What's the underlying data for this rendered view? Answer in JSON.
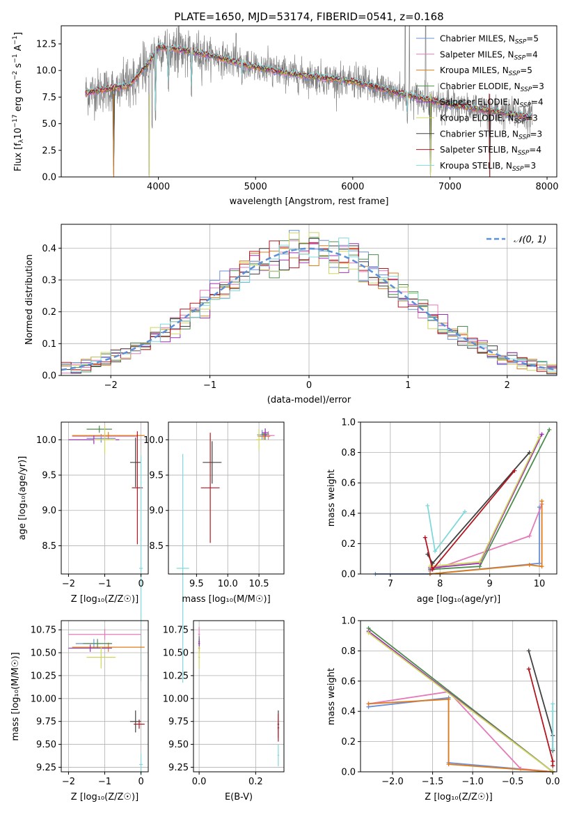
{
  "colors": {
    "series": [
      "#6a8fd6",
      "#e57ab8",
      "#e07b1a",
      "#4c8c4c",
      "#9b2fb4",
      "#cdd65a",
      "#404040",
      "#b3161f",
      "#7fd8dc"
    ],
    "raw": "#808080",
    "normal": "#5b8fd6",
    "grid": "#b0b0b0"
  },
  "chart_data": [
    {
      "id": "spectrum",
      "type": "line",
      "title": "PLATE=1650, MJD=53174, FIBERID=0541, z=0.168",
      "xlabel": "wavelength [Angstrom, rest frame]",
      "ylabel_parts": [
        "Flux [f",
        "λ",
        "10",
        "−17",
        " erg cm",
        "−2",
        " s",
        "−1",
        " A",
        "−1",
        "]"
      ],
      "xlim": [
        3000,
        8100
      ],
      "ylim": [
        0,
        14.2
      ],
      "xticks": [
        4000,
        5000,
        6000,
        7000,
        8000
      ],
      "yticks": [
        0.0,
        2.5,
        5.0,
        7.5,
        10.0,
        12.5
      ],
      "legend": [
        {
          "model": "Chabrier MILES",
          "n": 5
        },
        {
          "model": "Salpeter MILES",
          "n": 4
        },
        {
          "model": "Kroupa MILES",
          "n": 5
        },
        {
          "model": "Chabrier ELODIE",
          "n": 3
        },
        {
          "model": "Salpeter ELODIE",
          "n": 4
        },
        {
          "model": "Kroupa ELODIE",
          "n": 3
        },
        {
          "model": "Chabrier STELIB",
          "n": 3
        },
        {
          "model": "Salpeter STELIB",
          "n": 4
        },
        {
          "model": "Kroupa STELIB",
          "n": 3
        }
      ],
      "legend_suffix": "SSP",
      "legend_position": "top-right",
      "continuum": [
        [
          3250,
          7.9
        ],
        [
          3500,
          8.3
        ],
        [
          3700,
          8.6
        ],
        [
          3900,
          10.7
        ],
        [
          4000,
          12.2
        ],
        [
          4200,
          12.0
        ],
        [
          4500,
          11.5
        ],
        [
          5000,
          10.3
        ],
        [
          5500,
          9.5
        ],
        [
          6000,
          9.0
        ],
        [
          6500,
          7.8
        ],
        [
          7000,
          6.8
        ],
        [
          7500,
          6.1
        ],
        [
          7850,
          5.6
        ]
      ],
      "absorption": [
        [
          3540,
          0.0
        ],
        [
          3905,
          0.0
        ],
        [
          3935,
          4.5
        ],
        [
          3970,
          5.2
        ],
        [
          4102,
          8.0
        ],
        [
          4340,
          7.5
        ],
        [
          4860,
          8.5
        ],
        [
          5175,
          8.4
        ],
        [
          5890,
          7.7
        ],
        [
          6563,
          5.0
        ],
        [
          6800,
          0.0
        ],
        [
          7410,
          0.0
        ]
      ],
      "emission": [
        [
          4800,
          13.5
        ],
        [
          6540,
          14.2
        ],
        [
          6583,
          14.2
        ],
        [
          6750,
          14.2
        ]
      ]
    },
    {
      "id": "residuals",
      "type": "histogram",
      "xlabel": "(data-model)/error",
      "ylabel": "Normed distribution",
      "xlim": [
        -2.5,
        2.5
      ],
      "ylim": [
        0,
        0.475
      ],
      "xticks": [
        -2,
        -1,
        0,
        1,
        2
      ],
      "yticks": [
        0.0,
        0.1,
        0.2,
        0.3,
        0.4
      ],
      "legend": "𝒩(0, 1)",
      "legend_position": "top-right",
      "bins": 50,
      "edges": [
        -2.5,
        2.5
      ]
    },
    {
      "id": "age-vs-Z",
      "type": "scatter",
      "xlabel": "Z [log₁₀(Z/Z☉)]",
      "ylabel": "age  [log₁₀(age/yr)]",
      "xlim": [
        -2.2,
        0.2
      ],
      "ylim": [
        8.1,
        10.25
      ],
      "xticks": [
        -2,
        -1,
        0
      ],
      "yticks": [
        8.5,
        9.0,
        9.5,
        10.0
      ],
      "points": [
        {
          "x": -1.1,
          "y": 10.02,
          "xerr": 0.4,
          "yerr": 0.06
        },
        {
          "x": -1.0,
          "y": 10.05,
          "xerr": 0.9,
          "yerr": 0.05
        },
        {
          "x": -0.9,
          "y": 10.06,
          "xerr": 1.0,
          "yerr": 0.05
        },
        {
          "x": -1.15,
          "y": 10.15,
          "xerr": 0.35,
          "yerr": 0.05
        },
        {
          "x": -1.3,
          "y": 10.0,
          "xerr": 0.7,
          "yerr": 0.06
        },
        {
          "x": -1.0,
          "y": 10.0,
          "xerr": 0.3,
          "yerr": 0.2
        },
        {
          "x": -0.15,
          "y": 9.68,
          "xerr": 0.15,
          "yerr": 0.35
        },
        {
          "x": -0.1,
          "y": 9.32,
          "xerr": 0.15,
          "yerr": 0.8
        },
        {
          "x": 0.0,
          "y": 8.18,
          "xerr": 0.05,
          "yerr": 1.6
        }
      ]
    },
    {
      "id": "age-vs-mass",
      "type": "scatter",
      "xlabel": "mass [log₁₀(M/M☉)]",
      "ylabel": "",
      "xlim": [
        9.05,
        10.9
      ],
      "ylim": [
        8.1,
        10.25
      ],
      "xticks": [
        9.5,
        10.0,
        10.5
      ],
      "yticks": [
        8.5,
        9.0,
        9.5,
        10.0
      ],
      "points": [
        {
          "x": 10.55,
          "y": 10.07,
          "xerr": 0.08,
          "yerr": 0.07
        },
        {
          "x": 10.65,
          "y": 10.06,
          "xerr": 0.1,
          "yerr": 0.06
        },
        {
          "x": 10.58,
          "y": 10.05,
          "xerr": 0.1,
          "yerr": 0.05
        },
        {
          "x": 10.6,
          "y": 10.08,
          "xerr": 0.06,
          "yerr": 0.08
        },
        {
          "x": 10.6,
          "y": 10.1,
          "xerr": 0.05,
          "yerr": 0.06
        },
        {
          "x": 10.5,
          "y": 10.0,
          "xerr": 0.05,
          "yerr": 0.15
        },
        {
          "x": 9.75,
          "y": 9.68,
          "xerr": 0.15,
          "yerr": 0.3
        },
        {
          "x": 9.72,
          "y": 9.32,
          "xerr": 0.15,
          "yerr": 0.78
        },
        {
          "x": 9.28,
          "y": 8.18,
          "xerr": 0.1,
          "yerr": 1.62
        }
      ]
    },
    {
      "id": "massweight-vs-age",
      "type": "line",
      "xlabel": "age  [log₁₀(age/yr)]",
      "ylabel": "mass weight",
      "xlim": [
        6.4,
        10.35
      ],
      "ylim": [
        0,
        1.0
      ],
      "xticks": [
        7,
        8,
        9,
        10
      ],
      "yticks": [
        0.0,
        0.2,
        0.4,
        0.6,
        0.8,
        1.0
      ],
      "series": [
        {
          "x": [
            6.7,
            7.8,
            10.0,
            10.0
          ],
          "y": [
            0.0,
            0.0,
            0.07,
            0.44
          ]
        },
        {
          "x": [
            7.8,
            9.8,
            10.05
          ],
          "y": [
            0.02,
            0.25,
            0.46
          ]
        },
        {
          "x": [
            7.8,
            9.8,
            10.05,
            10.05
          ],
          "y": [
            0.0,
            0.06,
            0.05,
            0.48
          ]
        },
        {
          "x": [
            7.8,
            8.8,
            10.2
          ],
          "y": [
            0.03,
            0.05,
            0.95
          ]
        },
        {
          "x": [
            7.8,
            8.8,
            10.05
          ],
          "y": [
            0.04,
            0.07,
            0.92
          ]
        },
        {
          "x": [
            7.8,
            8.8,
            10.0
          ],
          "y": [
            0.05,
            0.08,
            0.9
          ]
        },
        {
          "x": [
            7.75,
            7.85,
            9.8
          ],
          "y": [
            0.13,
            0.07,
            0.8
          ]
        },
        {
          "x": [
            7.7,
            7.85,
            9.5
          ],
          "y": [
            0.24,
            0.03,
            0.68
          ]
        },
        {
          "x": [
            7.75,
            7.9,
            8.5
          ],
          "y": [
            0.45,
            0.15,
            0.41
          ]
        }
      ]
    },
    {
      "id": "mass-vs-Z",
      "type": "scatter",
      "xlabel": "Z [log₁₀(Z/Z☉)]",
      "ylabel": "mass [log₁₀(M/M☉)]",
      "xlim": [
        -2.2,
        0.2
      ],
      "ylim": [
        9.2,
        10.85
      ],
      "xticks": [
        -2,
        -1,
        0
      ],
      "yticks": [
        9.25,
        9.5,
        9.75,
        10.0,
        10.25,
        10.5,
        10.75
      ],
      "points": [
        {
          "x": -1.3,
          "y": 10.6,
          "xerr": 0.5,
          "yerr": 0.05
        },
        {
          "x": -1.0,
          "y": 10.7,
          "xerr": 1.0,
          "yerr": 0.06
        },
        {
          "x": -0.9,
          "y": 10.56,
          "xerr": 1.0,
          "yerr": 0.05
        },
        {
          "x": -1.2,
          "y": 10.6,
          "xerr": 0.4,
          "yerr": 0.05
        },
        {
          "x": -1.4,
          "y": 10.55,
          "xerr": 0.6,
          "yerr": 0.04
        },
        {
          "x": -1.1,
          "y": 10.45,
          "xerr": 0.4,
          "yerr": 0.12
        },
        {
          "x": -0.15,
          "y": 9.75,
          "xerr": 0.15,
          "yerr": 0.12
        },
        {
          "x": -0.05,
          "y": 9.72,
          "xerr": 0.15,
          "yerr": 0.05
        },
        {
          "x": 0.0,
          "y": 9.28,
          "xerr": 0.05,
          "yerr": 0.12
        }
      ]
    },
    {
      "id": "mass-vs-EBV",
      "type": "scatter",
      "xlabel": "E(B-V)",
      "ylabel": "",
      "xlim": [
        -0.02,
        0.3
      ],
      "ylim": [
        9.2,
        10.85
      ],
      "xticks": [
        0.0,
        0.2
      ],
      "yticks": [
        9.25,
        9.5,
        9.75,
        10.0,
        10.25,
        10.5,
        10.75
      ],
      "points": [
        {
          "x": 0.0,
          "y": 10.6,
          "xerr": 0.003,
          "yerr": 0.08
        },
        {
          "x": 0.0,
          "y": 10.7,
          "xerr": 0.003,
          "yerr": 0.08
        },
        {
          "x": 0.0,
          "y": 10.55,
          "xerr": 0.003,
          "yerr": 0.06
        },
        {
          "x": 0.0,
          "y": 10.62,
          "xerr": 0.003,
          "yerr": 0.06
        },
        {
          "x": 0.0,
          "y": 10.6,
          "xerr": 0.003,
          "yerr": 0.05
        },
        {
          "x": 0.0,
          "y": 10.45,
          "xerr": 0.003,
          "yerr": 0.12
        },
        {
          "x": 0.28,
          "y": 9.72,
          "xerr": 0.003,
          "yerr": 0.15
        },
        {
          "x": 0.28,
          "y": 9.68,
          "xerr": 0.003,
          "yerr": 0.15
        },
        {
          "x": 0.28,
          "y": 9.38,
          "xerr": 0.003,
          "yerr": 0.12
        }
      ]
    },
    {
      "id": "massweight-vs-Z",
      "type": "line",
      "xlabel": "Z [log₁₀(Z/Z☉)]",
      "ylabel": "mass weight",
      "xlim": [
        -2.4,
        0.05
      ],
      "ylim": [
        0,
        1.0
      ],
      "xticks": [
        -2.0,
        -1.5,
        -1.0,
        -0.5,
        0.0
      ],
      "yticks": [
        0.0,
        0.2,
        0.4,
        0.6,
        0.8,
        1.0
      ],
      "series": [
        {
          "x": [
            -2.3,
            -1.3,
            -1.3,
            0.0
          ],
          "y": [
            0.43,
            0.49,
            0.06,
            0.0
          ]
        },
        {
          "x": [
            -2.3,
            -1.3,
            -0.4,
            0.0
          ],
          "y": [
            0.45,
            0.53,
            0.02,
            0.0
          ]
        },
        {
          "x": [
            -2.3,
            -1.3,
            -1.3,
            0.0
          ],
          "y": [
            0.45,
            0.48,
            0.05,
            0.0
          ]
        },
        {
          "x": [
            -2.3,
            0.0
          ],
          "y": [
            0.95,
            0.0
          ]
        },
        {
          "x": [
            -2.3,
            0.0
          ],
          "y": [
            0.93,
            0.0
          ]
        },
        {
          "x": [
            -2.3,
            0.0
          ],
          "y": [
            0.92,
            0.0
          ]
        },
        {
          "x": [
            -0.3,
            0.0,
            0.0
          ],
          "y": [
            0.8,
            0.24,
            0.14
          ]
        },
        {
          "x": [
            -0.3,
            0.0,
            0.0
          ],
          "y": [
            0.68,
            0.07,
            0.04
          ]
        },
        {
          "x": [
            0.0,
            0.0,
            0.0
          ],
          "y": [
            0.45,
            0.4,
            0.15
          ]
        }
      ]
    }
  ]
}
